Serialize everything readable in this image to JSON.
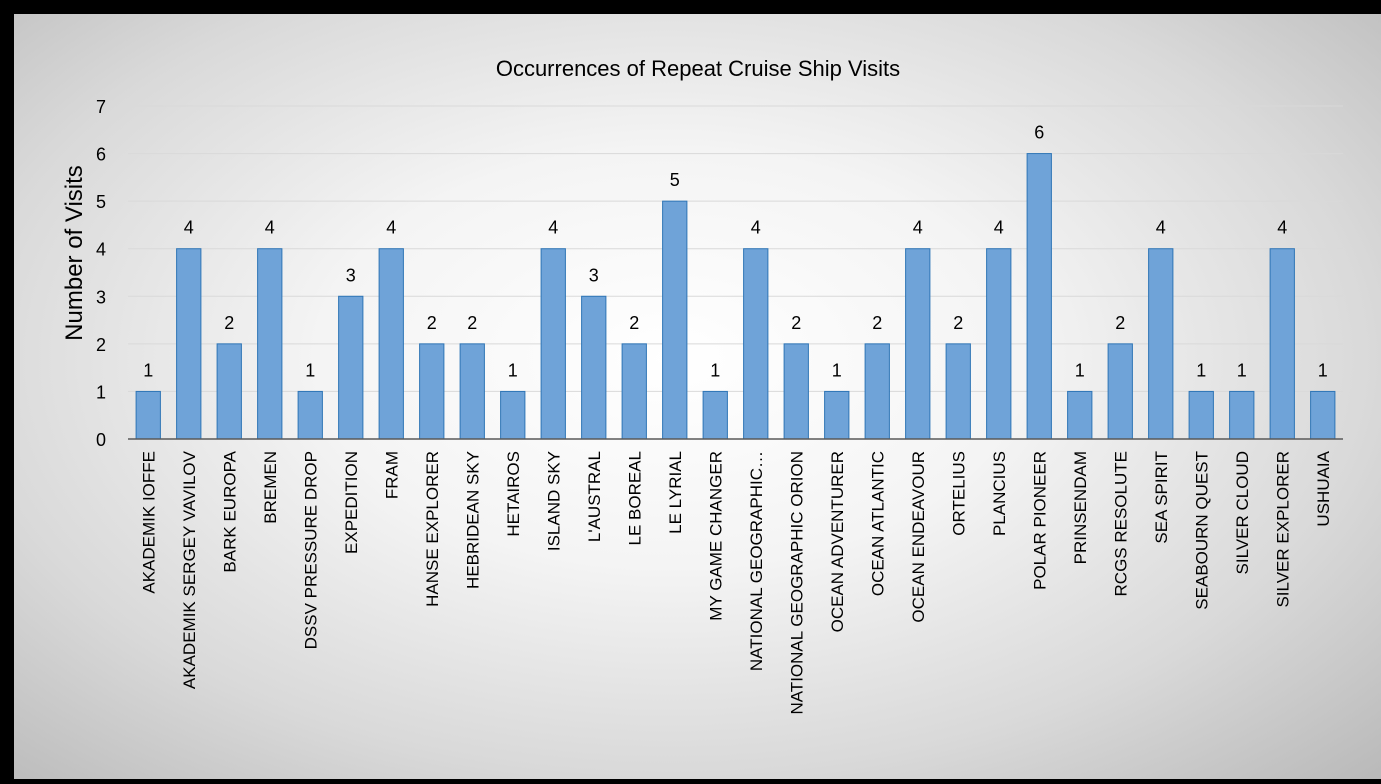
{
  "chart_data": {
    "type": "bar",
    "title": "Occurrences of Repeat Cruise Ship Visits",
    "xlabel": "",
    "ylabel": "Number of Visits",
    "ylim": [
      0,
      7
    ],
    "yticks": [
      0,
      1,
      2,
      3,
      4,
      5,
      6,
      7
    ],
    "grid": true,
    "legend": "none",
    "bar_color": "#6fa3d8",
    "bar_edge_color": "#2e75b6",
    "data_labels": true,
    "categories": [
      "AKADEMIK IOFFE",
      "AKADEMIK SERGEY VAVILOV",
      "BARK EUROPA",
      "BREMEN",
      "DSSV PRESSURE DROP",
      "EXPEDITION",
      "FRAM",
      "HANSE EXPLORER",
      "HEBRIDEAN SKY",
      "HETAIROS",
      "ISLAND SKY",
      "L'AUSTRAL",
      "LE BOREAL",
      "LE LYRIAL",
      "MY GAME CHANGER",
      "NATIONAL GEOGRAPHIC…",
      "NATIONAL GEOGRAPHIC ORION",
      "OCEAN ADVENTURER",
      "OCEAN ATLANTIC",
      "OCEAN ENDEAVOUR",
      "ORTELIUS",
      "PLANCIUS",
      "POLAR PIONEER",
      "PRINSENDAM",
      "RCGS RESOLUTE",
      "SEA SPIRIT",
      "SEABOURN QUEST",
      "SILVER CLOUD",
      "SILVER EXPLORER",
      "USHUAIA"
    ],
    "values": [
      1,
      4,
      2,
      4,
      1,
      3,
      4,
      2,
      2,
      1,
      4,
      3,
      2,
      5,
      1,
      4,
      2,
      1,
      2,
      4,
      2,
      4,
      6,
      1,
      2,
      4,
      1,
      1,
      4,
      1
    ]
  }
}
